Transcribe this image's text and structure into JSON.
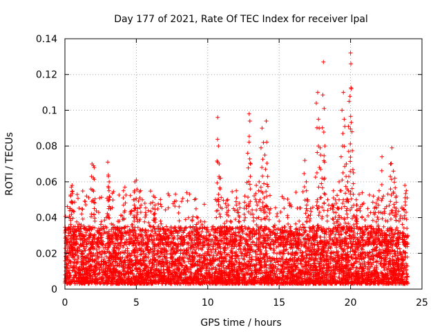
{
  "chart_data": {
    "type": "scatter",
    "title": "Day 177 of 2021, Rate Of TEC Index for receiver lpal",
    "xlabel": "GPS time / hours",
    "ylabel": "ROTI / TECUs",
    "xlim": [
      0,
      25
    ],
    "ylim": [
      0,
      0.14
    ],
    "xticks": [
      0,
      5,
      10,
      15,
      20,
      25
    ],
    "xtick_labels": [
      "0",
      "5",
      "10",
      "15",
      "20",
      "25"
    ],
    "yticks": [
      0,
      0.02,
      0.04,
      0.06,
      0.08,
      0.1,
      0.12,
      0.14
    ],
    "ytick_labels": [
      "0",
      "0.02",
      "0.04",
      "0.06",
      "0.08",
      "0.1",
      "0.12",
      "0.14"
    ],
    "grid": true,
    "marker": "plus",
    "color": "#ff0000",
    "series": [
      {
        "name": "ROTI",
        "points": [
          [
            0.1,
            0.012
          ],
          [
            0.2,
            0.018
          ],
          [
            0.3,
            0.009
          ],
          [
            0.35,
            0.045
          ],
          [
            0.4,
            0.052
          ],
          [
            0.45,
            0.057
          ],
          [
            0.5,
            0.058
          ],
          [
            0.6,
            0.03
          ],
          [
            0.7,
            0.022
          ],
          [
            0.8,
            0.015
          ],
          [
            0.9,
            0.035
          ],
          [
            1.0,
            0.012
          ],
          [
            1.2,
            0.02
          ],
          [
            1.4,
            0.018
          ],
          [
            1.5,
            0.025
          ],
          [
            1.7,
            0.03
          ],
          [
            1.9,
            0.07
          ],
          [
            2.0,
            0.069
          ],
          [
            2.05,
            0.068
          ],
          [
            2.1,
            0.038
          ],
          [
            2.3,
            0.032
          ],
          [
            2.5,
            0.028
          ],
          [
            2.7,
            0.035
          ],
          [
            2.9,
            0.04
          ],
          [
            3.0,
            0.071
          ],
          [
            3.05,
            0.063
          ],
          [
            3.1,
            0.06
          ],
          [
            3.2,
            0.045
          ],
          [
            3.4,
            0.032
          ],
          [
            3.6,
            0.02
          ],
          [
            3.8,
            0.038
          ],
          [
            4.0,
            0.03
          ],
          [
            4.1,
            0.055
          ],
          [
            4.2,
            0.057
          ],
          [
            4.4,
            0.035
          ],
          [
            4.6,
            0.042
          ],
          [
            4.8,
            0.05
          ],
          [
            4.9,
            0.06
          ],
          [
            5.0,
            0.061
          ],
          [
            5.1,
            0.045
          ],
          [
            5.2,
            0.038
          ],
          [
            5.3,
            0.055
          ],
          [
            5.5,
            0.028
          ],
          [
            5.6,
            0.048
          ],
          [
            5.8,
            0.022
          ],
          [
            6.0,
            0.035
          ],
          [
            6.2,
            0.052
          ],
          [
            6.3,
            0.047
          ],
          [
            6.5,
            0.03
          ],
          [
            6.7,
            0.038
          ],
          [
            6.9,
            0.025
          ],
          [
            7.1,
            0.035
          ],
          [
            7.3,
            0.03
          ],
          [
            7.5,
            0.032
          ],
          [
            7.7,
            0.022
          ],
          [
            7.9,
            0.028
          ],
          [
            8.1,
            0.02
          ],
          [
            8.3,
            0.025
          ],
          [
            8.5,
            0.022
          ],
          [
            8.7,
            0.03
          ],
          [
            8.9,
            0.018
          ],
          [
            9.1,
            0.025
          ],
          [
            9.3,
            0.032
          ],
          [
            9.5,
            0.038
          ],
          [
            9.6,
            0.036
          ],
          [
            9.8,
            0.02
          ],
          [
            10.0,
            0.028
          ],
          [
            10.2,
            0.022
          ],
          [
            10.4,
            0.035
          ],
          [
            10.6,
            0.04
          ],
          [
            10.7,
            0.096
          ],
          [
            10.75,
            0.08
          ],
          [
            10.8,
            0.07
          ],
          [
            10.9,
            0.062
          ],
          [
            11.0,
            0.045
          ],
          [
            11.2,
            0.035
          ],
          [
            11.4,
            0.05
          ],
          [
            11.6,
            0.038
          ],
          [
            11.8,
            0.045
          ],
          [
            12.0,
            0.055
          ],
          [
            12.2,
            0.048
          ],
          [
            12.4,
            0.035
          ],
          [
            12.6,
            0.052
          ],
          [
            12.8,
            0.076
          ],
          [
            12.9,
            0.098
          ],
          [
            12.95,
            0.094
          ],
          [
            13.0,
            0.07
          ],
          [
            13.2,
            0.04
          ],
          [
            13.4,
            0.058
          ],
          [
            13.6,
            0.06
          ],
          [
            13.8,
            0.09
          ],
          [
            13.9,
            0.082
          ],
          [
            14.0,
            0.075
          ],
          [
            14.1,
            0.094
          ],
          [
            14.2,
            0.063
          ],
          [
            14.4,
            0.045
          ],
          [
            14.6,
            0.035
          ],
          [
            14.8,
            0.03
          ],
          [
            15.0,
            0.038
          ],
          [
            15.2,
            0.032
          ],
          [
            15.4,
            0.028
          ],
          [
            15.6,
            0.04
          ],
          [
            15.8,
            0.035
          ],
          [
            16.0,
            0.03
          ],
          [
            16.2,
            0.025
          ],
          [
            16.4,
            0.038
          ],
          [
            16.6,
            0.03
          ],
          [
            16.8,
            0.072
          ],
          [
            16.9,
            0.06
          ],
          [
            17.0,
            0.05
          ],
          [
            17.2,
            0.045
          ],
          [
            17.4,
            0.035
          ],
          [
            17.6,
            0.104
          ],
          [
            17.7,
            0.11
          ],
          [
            17.8,
            0.09
          ],
          [
            17.9,
            0.075
          ],
          [
            18.0,
            0.062
          ],
          [
            18.1,
            0.127
          ],
          [
            18.15,
            0.101
          ],
          [
            18.2,
            0.08
          ],
          [
            18.4,
            0.05
          ],
          [
            18.6,
            0.045
          ],
          [
            18.8,
            0.055
          ],
          [
            19.0,
            0.048
          ],
          [
            19.2,
            0.06
          ],
          [
            19.4,
            0.1
          ],
          [
            19.5,
            0.11
          ],
          [
            19.6,
            0.091
          ],
          [
            19.7,
            0.07
          ],
          [
            19.8,
            0.06
          ],
          [
            19.9,
            0.105
          ],
          [
            20.0,
            0.132
          ],
          [
            20.02,
            0.126
          ],
          [
            20.05,
            0.112
          ],
          [
            20.1,
            0.088
          ],
          [
            20.2,
            0.065
          ],
          [
            20.4,
            0.05
          ],
          [
            20.6,
            0.045
          ],
          [
            20.8,
            0.04
          ],
          [
            21.0,
            0.035
          ],
          [
            21.2,
            0.045
          ],
          [
            21.4,
            0.03
          ],
          [
            21.6,
            0.052
          ],
          [
            21.8,
            0.048
          ],
          [
            22.0,
            0.055
          ],
          [
            22.2,
            0.074
          ],
          [
            22.4,
            0.045
          ],
          [
            22.6,
            0.038
          ],
          [
            22.8,
            0.07
          ],
          [
            22.9,
            0.079
          ],
          [
            23.0,
            0.066
          ],
          [
            23.1,
            0.062
          ],
          [
            23.2,
            0.052
          ],
          [
            23.4,
            0.038
          ],
          [
            23.6,
            0.045
          ],
          [
            23.8,
            0.058
          ],
          [
            23.9,
            0.055
          ],
          [
            24.0,
            0.03
          ]
        ]
      }
    ],
    "background_points": {
      "description_range": "dense ROTI values between 0.003 and 0.035 across 0-24 h",
      "x_range": [
        0,
        24
      ],
      "y_band": [
        0.003,
        0.035
      ]
    }
  }
}
